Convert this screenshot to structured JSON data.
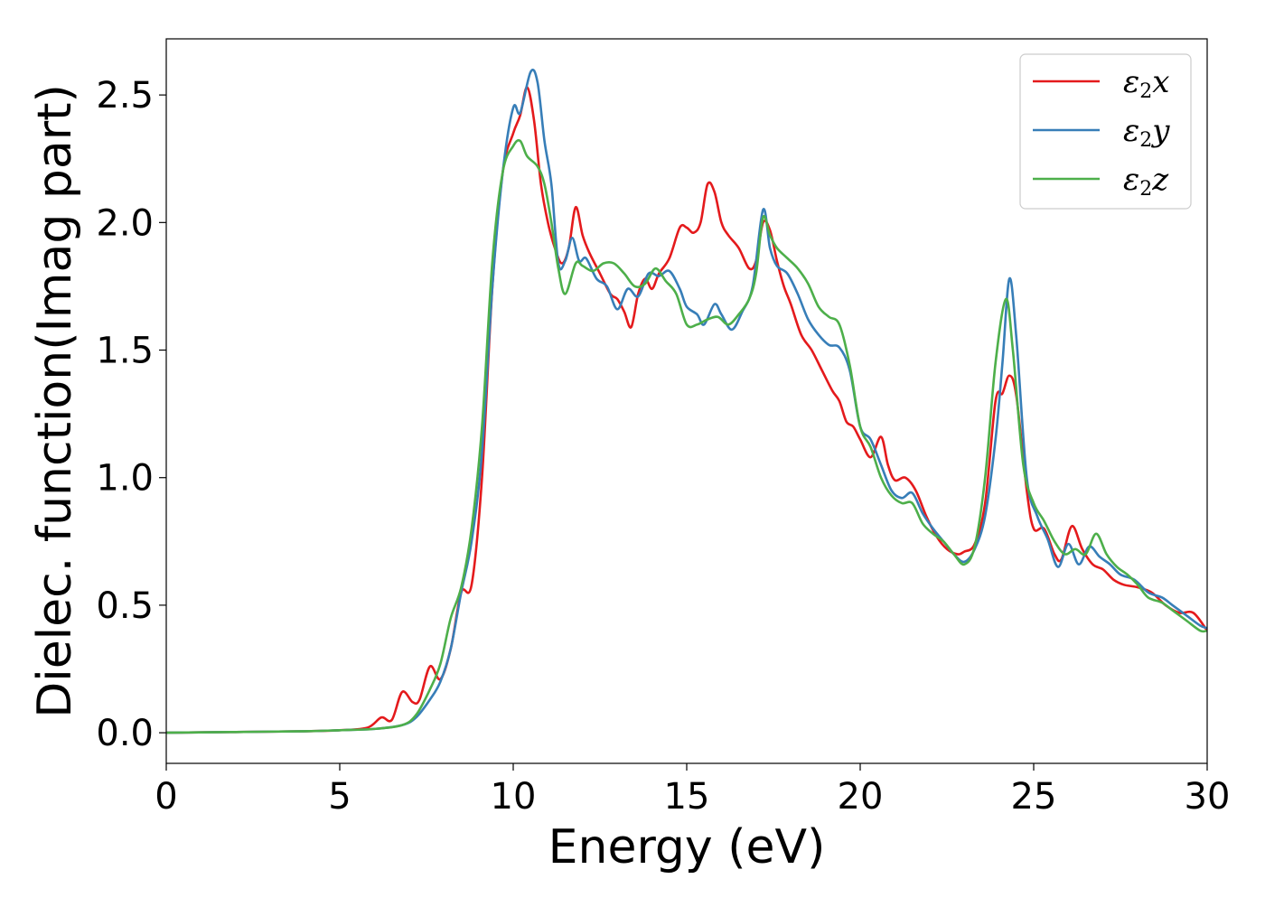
{
  "chart_data": {
    "type": "line",
    "xlabel": "Energy (eV)",
    "ylabel": "Dielec. function(Imag part)",
    "xlim": [
      0,
      30
    ],
    "ylim": [
      -0.12,
      2.72
    ],
    "xticks": [
      "0",
      "5",
      "10",
      "15",
      "20",
      "25",
      "30"
    ],
    "yticks": [
      "0.0",
      "0.5",
      "1.0",
      "1.5",
      "2.0",
      "2.5"
    ],
    "grid": false,
    "legend_position": "top-right",
    "series": [
      {
        "name": "ε2x",
        "legend": {
          "symbol": "ε",
          "sub": "2",
          "axis": "x"
        },
        "color": "#e41a1c",
        "points": [
          [
            0,
            0
          ],
          [
            2,
            0.003
          ],
          [
            4,
            0.006
          ],
          [
            5,
            0.01
          ],
          [
            5.8,
            0.02
          ],
          [
            6.2,
            0.06
          ],
          [
            6.5,
            0.05
          ],
          [
            6.8,
            0.16
          ],
          [
            7.1,
            0.12
          ],
          [
            7.3,
            0.13
          ],
          [
            7.6,
            0.26
          ],
          [
            7.9,
            0.21
          ],
          [
            8.2,
            0.33
          ],
          [
            8.5,
            0.55
          ],
          [
            8.8,
            0.58
          ],
          [
            9.1,
            1.0
          ],
          [
            9.4,
            1.75
          ],
          [
            9.7,
            2.2
          ],
          [
            10.0,
            2.35
          ],
          [
            10.2,
            2.42
          ],
          [
            10.4,
            2.53
          ],
          [
            10.6,
            2.4
          ],
          [
            10.8,
            2.15
          ],
          [
            11.0,
            2.0
          ],
          [
            11.2,
            1.9
          ],
          [
            11.4,
            1.84
          ],
          [
            11.6,
            1.9
          ],
          [
            11.8,
            2.06
          ],
          [
            12.0,
            1.95
          ],
          [
            12.2,
            1.88
          ],
          [
            12.5,
            1.8
          ],
          [
            12.8,
            1.72
          ],
          [
            13.0,
            1.7
          ],
          [
            13.2,
            1.65
          ],
          [
            13.4,
            1.59
          ],
          [
            13.6,
            1.72
          ],
          [
            13.8,
            1.78
          ],
          [
            14.0,
            1.74
          ],
          [
            14.2,
            1.8
          ],
          [
            14.5,
            1.86
          ],
          [
            14.8,
            1.98
          ],
          [
            15.0,
            1.98
          ],
          [
            15.2,
            1.96
          ],
          [
            15.4,
            2.0
          ],
          [
            15.6,
            2.15
          ],
          [
            15.8,
            2.12
          ],
          [
            16.0,
            2.0
          ],
          [
            16.2,
            1.95
          ],
          [
            16.5,
            1.9
          ],
          [
            16.8,
            1.82
          ],
          [
            17.0,
            1.85
          ],
          [
            17.2,
            2.0
          ],
          [
            17.4,
            1.97
          ],
          [
            17.6,
            1.85
          ],
          [
            17.8,
            1.75
          ],
          [
            18.0,
            1.68
          ],
          [
            18.3,
            1.56
          ],
          [
            18.6,
            1.5
          ],
          [
            18.9,
            1.42
          ],
          [
            19.2,
            1.34
          ],
          [
            19.4,
            1.3
          ],
          [
            19.6,
            1.22
          ],
          [
            19.8,
            1.2
          ],
          [
            20.0,
            1.15
          ],
          [
            20.3,
            1.08
          ],
          [
            20.6,
            1.16
          ],
          [
            20.8,
            1.05
          ],
          [
            21.0,
            0.99
          ],
          [
            21.3,
            1.0
          ],
          [
            21.6,
            0.95
          ],
          [
            21.9,
            0.85
          ],
          [
            22.2,
            0.77
          ],
          [
            22.5,
            0.72
          ],
          [
            22.8,
            0.7
          ],
          [
            23.0,
            0.71
          ],
          [
            23.3,
            0.74
          ],
          [
            23.6,
            0.9
          ],
          [
            23.9,
            1.3
          ],
          [
            24.1,
            1.33
          ],
          [
            24.3,
            1.4
          ],
          [
            24.5,
            1.32
          ],
          [
            24.8,
            0.95
          ],
          [
            25.0,
            0.8
          ],
          [
            25.3,
            0.8
          ],
          [
            25.6,
            0.7
          ],
          [
            25.8,
            0.68
          ],
          [
            26.1,
            0.81
          ],
          [
            26.4,
            0.72
          ],
          [
            26.7,
            0.66
          ],
          [
            27.0,
            0.64
          ],
          [
            27.3,
            0.6
          ],
          [
            27.6,
            0.58
          ],
          [
            28.0,
            0.57
          ],
          [
            28.4,
            0.55
          ],
          [
            28.8,
            0.5
          ],
          [
            29.2,
            0.47
          ],
          [
            29.6,
            0.47
          ],
          [
            30.0,
            0.4
          ]
        ]
      },
      {
        "name": "ε2y",
        "legend": {
          "symbol": "ε",
          "sub": "2",
          "axis": "y"
        },
        "color": "#377eb8",
        "points": [
          [
            0,
            0
          ],
          [
            2,
            0.003
          ],
          [
            4,
            0.006
          ],
          [
            5,
            0.01
          ],
          [
            6,
            0.015
          ],
          [
            6.8,
            0.03
          ],
          [
            7.2,
            0.06
          ],
          [
            7.6,
            0.13
          ],
          [
            7.9,
            0.2
          ],
          [
            8.2,
            0.33
          ],
          [
            8.5,
            0.55
          ],
          [
            8.8,
            0.75
          ],
          [
            9.1,
            1.1
          ],
          [
            9.4,
            1.75
          ],
          [
            9.7,
            2.2
          ],
          [
            10.0,
            2.45
          ],
          [
            10.2,
            2.43
          ],
          [
            10.5,
            2.59
          ],
          [
            10.7,
            2.55
          ],
          [
            10.9,
            2.32
          ],
          [
            11.1,
            2.15
          ],
          [
            11.3,
            1.84
          ],
          [
            11.5,
            1.85
          ],
          [
            11.7,
            1.94
          ],
          [
            11.9,
            1.85
          ],
          [
            12.1,
            1.86
          ],
          [
            12.4,
            1.78
          ],
          [
            12.7,
            1.75
          ],
          [
            13.0,
            1.66
          ],
          [
            13.3,
            1.74
          ],
          [
            13.6,
            1.71
          ],
          [
            13.9,
            1.8
          ],
          [
            14.2,
            1.79
          ],
          [
            14.5,
            1.81
          ],
          [
            14.8,
            1.74
          ],
          [
            15.0,
            1.67
          ],
          [
            15.3,
            1.64
          ],
          [
            15.5,
            1.6
          ],
          [
            15.8,
            1.68
          ],
          [
            16.0,
            1.64
          ],
          [
            16.3,
            1.58
          ],
          [
            16.6,
            1.65
          ],
          [
            16.9,
            1.75
          ],
          [
            17.2,
            2.05
          ],
          [
            17.4,
            1.9
          ],
          [
            17.6,
            1.83
          ],
          [
            17.9,
            1.8
          ],
          [
            18.2,
            1.72
          ],
          [
            18.5,
            1.62
          ],
          [
            18.8,
            1.56
          ],
          [
            19.1,
            1.52
          ],
          [
            19.4,
            1.51
          ],
          [
            19.7,
            1.42
          ],
          [
            20.0,
            1.2
          ],
          [
            20.3,
            1.15
          ],
          [
            20.6,
            1.05
          ],
          [
            20.9,
            0.95
          ],
          [
            21.2,
            0.92
          ],
          [
            21.5,
            0.94
          ],
          [
            21.8,
            0.86
          ],
          [
            22.1,
            0.8
          ],
          [
            22.4,
            0.75
          ],
          [
            22.7,
            0.7
          ],
          [
            23.0,
            0.67
          ],
          [
            23.3,
            0.72
          ],
          [
            23.6,
            0.85
          ],
          [
            23.9,
            1.15
          ],
          [
            24.1,
            1.45
          ],
          [
            24.3,
            1.78
          ],
          [
            24.5,
            1.55
          ],
          [
            24.8,
            1.0
          ],
          [
            25.1,
            0.85
          ],
          [
            25.4,
            0.76
          ],
          [
            25.7,
            0.65
          ],
          [
            26.0,
            0.74
          ],
          [
            26.3,
            0.66
          ],
          [
            26.6,
            0.73
          ],
          [
            26.9,
            0.69
          ],
          [
            27.2,
            0.66
          ],
          [
            27.5,
            0.62
          ],
          [
            27.9,
            0.6
          ],
          [
            28.3,
            0.55
          ],
          [
            28.7,
            0.53
          ],
          [
            29.0,
            0.5
          ],
          [
            29.4,
            0.46
          ],
          [
            29.8,
            0.42
          ],
          [
            30.0,
            0.41
          ]
        ]
      },
      {
        "name": "ε2z",
        "legend": {
          "symbol": "ε",
          "sub": "2",
          "axis": "z"
        },
        "color": "#4daf4a",
        "points": [
          [
            0,
            0
          ],
          [
            2,
            0.003
          ],
          [
            4,
            0.006
          ],
          [
            5,
            0.01
          ],
          [
            6,
            0.015
          ],
          [
            6.8,
            0.03
          ],
          [
            7.2,
            0.07
          ],
          [
            7.6,
            0.17
          ],
          [
            7.9,
            0.27
          ],
          [
            8.2,
            0.45
          ],
          [
            8.5,
            0.57
          ],
          [
            8.8,
            0.8
          ],
          [
            9.1,
            1.2
          ],
          [
            9.4,
            1.85
          ],
          [
            9.7,
            2.2
          ],
          [
            10.0,
            2.3
          ],
          [
            10.2,
            2.32
          ],
          [
            10.4,
            2.26
          ],
          [
            10.7,
            2.22
          ],
          [
            10.9,
            2.15
          ],
          [
            11.1,
            2.0
          ],
          [
            11.3,
            1.82
          ],
          [
            11.5,
            1.72
          ],
          [
            11.8,
            1.84
          ],
          [
            12.0,
            1.83
          ],
          [
            12.3,
            1.81
          ],
          [
            12.6,
            1.84
          ],
          [
            12.9,
            1.84
          ],
          [
            13.2,
            1.8
          ],
          [
            13.5,
            1.75
          ],
          [
            13.8,
            1.76
          ],
          [
            14.1,
            1.82
          ],
          [
            14.4,
            1.77
          ],
          [
            14.7,
            1.72
          ],
          [
            15.0,
            1.6
          ],
          [
            15.3,
            1.6
          ],
          [
            15.6,
            1.62
          ],
          [
            15.9,
            1.63
          ],
          [
            16.2,
            1.6
          ],
          [
            16.5,
            1.64
          ],
          [
            16.8,
            1.7
          ],
          [
            17.0,
            1.8
          ],
          [
            17.2,
            2.02
          ],
          [
            17.4,
            1.95
          ],
          [
            17.6,
            1.9
          ],
          [
            17.9,
            1.86
          ],
          [
            18.2,
            1.82
          ],
          [
            18.5,
            1.76
          ],
          [
            18.8,
            1.67
          ],
          [
            19.1,
            1.63
          ],
          [
            19.4,
            1.6
          ],
          [
            19.7,
            1.44
          ],
          [
            20.0,
            1.2
          ],
          [
            20.3,
            1.12
          ],
          [
            20.6,
            1.0
          ],
          [
            20.9,
            0.93
          ],
          [
            21.2,
            0.9
          ],
          [
            21.5,
            0.9
          ],
          [
            21.8,
            0.82
          ],
          [
            22.1,
            0.78
          ],
          [
            22.4,
            0.75
          ],
          [
            22.7,
            0.7
          ],
          [
            23.0,
            0.66
          ],
          [
            23.3,
            0.73
          ],
          [
            23.6,
            1.0
          ],
          [
            23.9,
            1.45
          ],
          [
            24.2,
            1.7
          ],
          [
            24.4,
            1.5
          ],
          [
            24.7,
            1.05
          ],
          [
            25.0,
            0.9
          ],
          [
            25.3,
            0.83
          ],
          [
            25.6,
            0.75
          ],
          [
            25.9,
            0.7
          ],
          [
            26.2,
            0.72
          ],
          [
            26.5,
            0.7
          ],
          [
            26.8,
            0.78
          ],
          [
            27.1,
            0.7
          ],
          [
            27.4,
            0.65
          ],
          [
            27.7,
            0.62
          ],
          [
            28.0,
            0.58
          ],
          [
            28.3,
            0.53
          ],
          [
            28.7,
            0.51
          ],
          [
            29.0,
            0.48
          ],
          [
            29.4,
            0.44
          ],
          [
            29.8,
            0.4
          ],
          [
            30.0,
            0.4
          ]
        ]
      }
    ]
  }
}
